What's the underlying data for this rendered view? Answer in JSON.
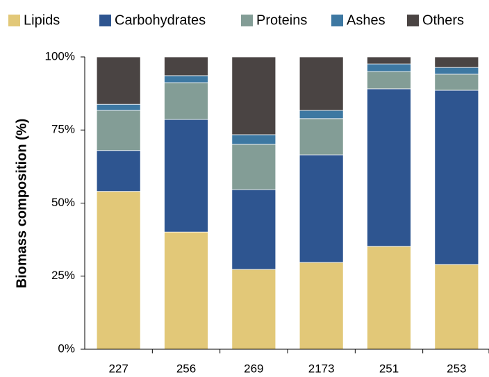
{
  "chart_data": {
    "type": "stacked_bar",
    "y_label": "Biomass composition (%)",
    "categories": [
      "227",
      "256",
      "269",
      "2173",
      "251",
      "253"
    ],
    "series": [
      {
        "name": "Lipids",
        "color": "#e2c878",
        "values": [
          54.0,
          40.1,
          27.3,
          29.7,
          35.2,
          29.0
        ]
      },
      {
        "name": "Carbohydrates",
        "color": "#2e5590",
        "values": [
          14.0,
          38.5,
          27.3,
          36.8,
          53.9,
          59.6
        ]
      },
      {
        "name": "Proteins",
        "color": "#839d96",
        "values": [
          13.7,
          12.6,
          15.5,
          12.4,
          5.9,
          5.5
        ]
      },
      {
        "name": "Ashes",
        "color": "#3d78a2",
        "values": [
          2.1,
          2.4,
          3.3,
          2.8,
          2.6,
          2.3
        ]
      },
      {
        "name": "Others",
        "color": "#4a4443",
        "values": [
          16.2,
          6.4,
          26.6,
          18.3,
          2.4,
          3.6
        ]
      }
    ],
    "ylim": [
      0,
      100
    ],
    "yticks": [
      {
        "value": 0,
        "label": "0%"
      },
      {
        "value": 25,
        "label": "25%"
      },
      {
        "value": 50,
        "label": "50%"
      },
      {
        "value": 75,
        "label": "75%"
      },
      {
        "value": 100,
        "label": "100%"
      }
    ],
    "legend": "top",
    "grid": false
  }
}
